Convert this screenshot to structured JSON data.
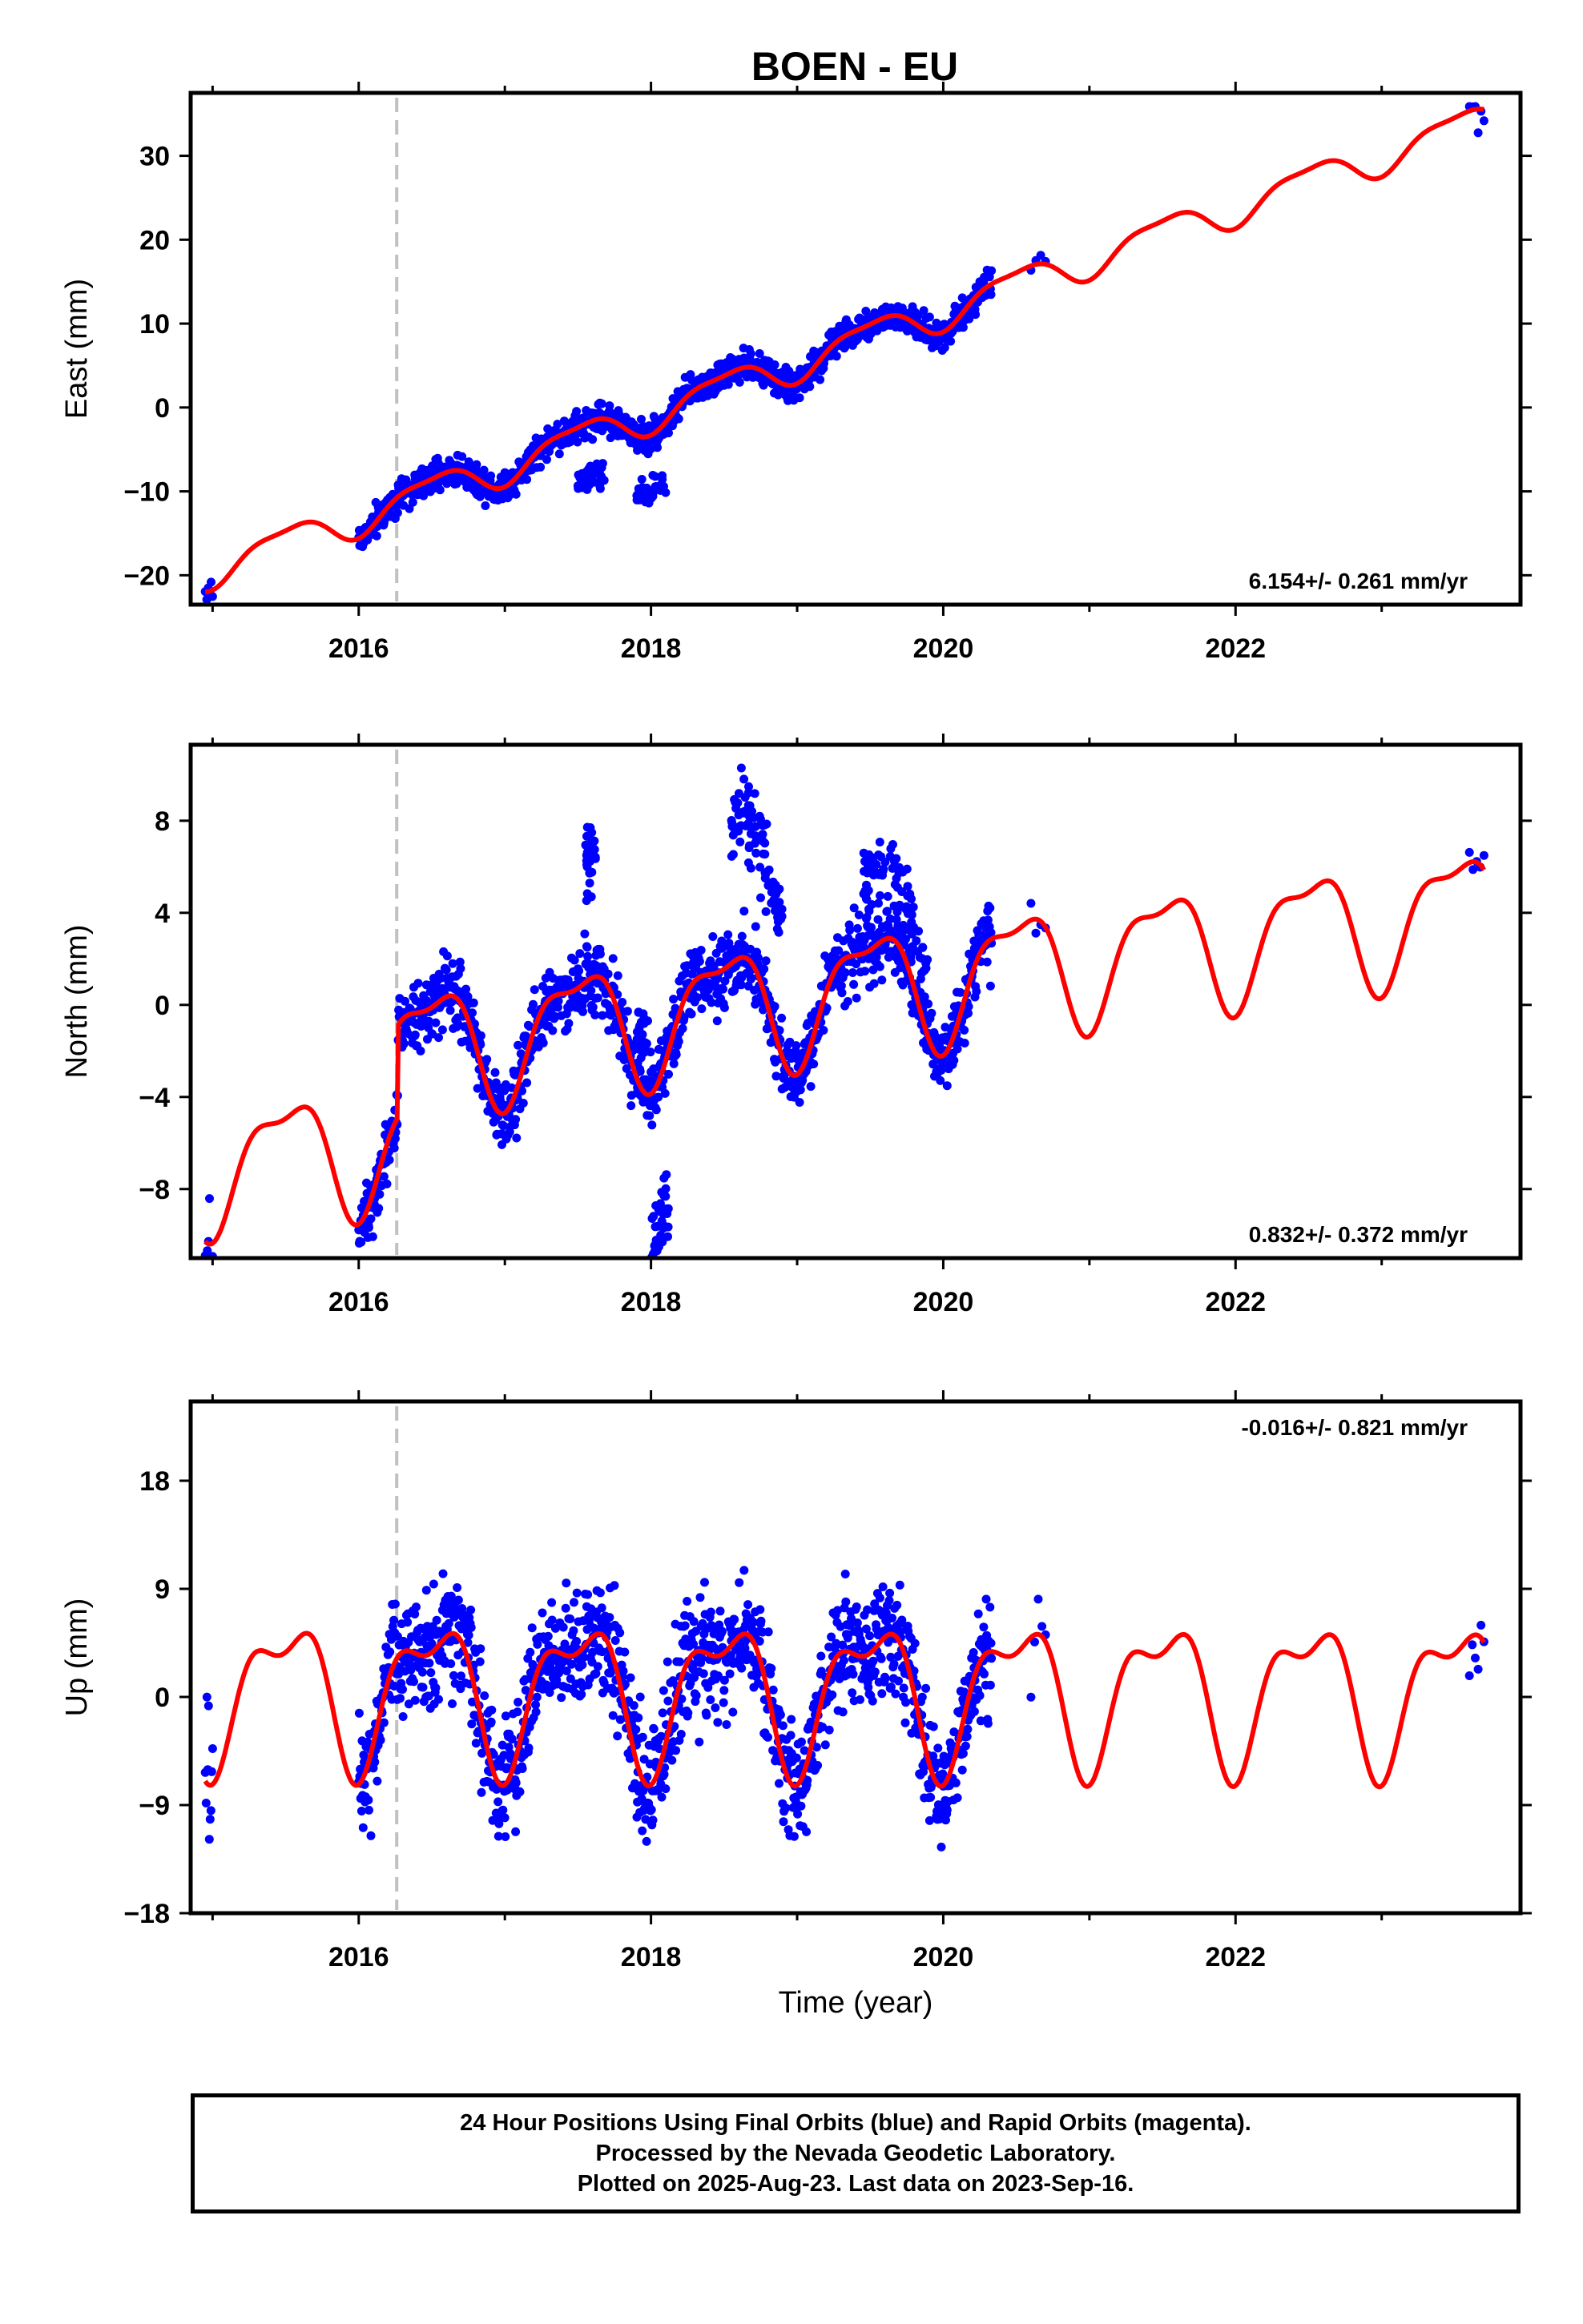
{
  "title": "BOEN - EU",
  "footer": {
    "lines": [
      "24 Hour Positions Using Final Orbits (blue) and Rapid Orbits (magenta).",
      "Processed by the Nevada Geodetic Laboratory.",
      "Plotted on 2025-Aug-23. Last data on 2023-Sep-16."
    ]
  },
  "colors": {
    "observations": "#0000ff",
    "model": "#ff0000",
    "equipment_change": "#c0c0c0",
    "frame": "#000000"
  },
  "chart_data": [
    {
      "type": "scatter",
      "panel": "east",
      "ylabel": "East (mm)",
      "xlabel": "",
      "xlim": [
        2014.85,
        2023.95
      ],
      "ylim": [
        -23.5,
        37.5
      ],
      "xticks": [
        2016,
        2018,
        2020,
        2022
      ],
      "yticks": [
        -20,
        -10,
        0,
        10,
        20,
        30
      ],
      "ytick_labels": [
        "−20",
        "−10",
        "0",
        "10",
        "20",
        "30"
      ],
      "equipment_change_x": 2016.26,
      "rate_text": "6.154+/- 0.261 mm/yr",
      "rate_position": "bottom-right",
      "observations": {
        "segments": [
          {
            "x0": 2014.95,
            "x1": 2015.0,
            "n": 6,
            "noise": 1.6
          },
          {
            "x0": 2016.0,
            "x1": 2020.33,
            "n": 1300,
            "noise": 1.3
          },
          {
            "x0": 2020.6,
            "x1": 2020.7,
            "n": 4,
            "noise": 1.0
          },
          {
            "x0": 2023.6,
            "x1": 2023.7,
            "n": 6,
            "noise": 2.5
          }
        ],
        "clusters": [
          {
            "x0": 2017.5,
            "x1": 2017.68,
            "offset": -6.5,
            "n": 45
          },
          {
            "x0": 2017.9,
            "x1": 2018.1,
            "offset": -7.0,
            "n": 45
          }
        ]
      },
      "model": {
        "rate": 6.154,
        "t0": 2015.0,
        "y0": -19.2,
        "annual_amp": 2.0,
        "semiannual_amp": 0.6,
        "offsets": []
      }
    },
    {
      "type": "scatter",
      "panel": "north",
      "ylabel": "North (mm)",
      "xlabel": "",
      "xlim": [
        2014.85,
        2023.95
      ],
      "ylim": [
        -11.0,
        11.3
      ],
      "xticks": [
        2016,
        2018,
        2020,
        2022
      ],
      "yticks": [
        -8,
        -4,
        0,
        4,
        8
      ],
      "ytick_labels": [
        "−8",
        "−4",
        "0",
        "4",
        "8"
      ],
      "equipment_change_x": 2016.26,
      "rate_text": "0.832+/- 0.372 mm/yr",
      "rate_position": "bottom-right",
      "observations": {
        "segments": [
          {
            "x0": 2014.95,
            "x1": 2015.0,
            "n": 8,
            "noise": 1.2
          },
          {
            "x0": 2016.0,
            "x1": 2020.33,
            "n": 1300,
            "noise": 1.1
          },
          {
            "x0": 2020.6,
            "x1": 2020.7,
            "n": 4,
            "noise": 1.2
          },
          {
            "x0": 2023.6,
            "x1": 2023.7,
            "n": 5,
            "noise": 0.8
          }
        ],
        "clusters": [
          {
            "x0": 2017.55,
            "x1": 2017.62,
            "offset": 5.5,
            "n": 35
          },
          {
            "x0": 2017.9,
            "x1": 2017.98,
            "offset": 2.5,
            "n": 25
          },
          {
            "x0": 2018.0,
            "x1": 2018.12,
            "offset": -6.5,
            "n": 40
          },
          {
            "x0": 2018.55,
            "x1": 2018.9,
            "offset": 6.0,
            "n": 90
          },
          {
            "x0": 2019.45,
            "x1": 2019.9,
            "offset": 2.8,
            "n": 90
          }
        ]
      },
      "model": {
        "rate": 0.832,
        "t0": 2015.0,
        "y0": -7.0,
        "annual_amp": 2.5,
        "semiannual_amp": 0.9,
        "offsets": [
          {
            "x": 2016.27,
            "dy": 4.0
          }
        ]
      }
    },
    {
      "type": "scatter",
      "panel": "up",
      "ylabel": "Up (mm)",
      "xlabel": "Time (year)",
      "xlim": [
        2014.85,
        2023.95
      ],
      "ylim": [
        -18.0,
        24.6
      ],
      "xticks": [
        2016,
        2018,
        2020,
        2022
      ],
      "yticks": [
        -18,
        -9,
        0,
        9,
        18
      ],
      "ytick_labels": [
        "−18",
        "−9",
        "0",
        "9",
        "18"
      ],
      "equipment_change_x": 2016.26,
      "rate_text": "-0.016+/- 0.821 mm/yr",
      "rate_position": "top-right",
      "observations": {
        "segments": [
          {
            "x0": 2014.95,
            "x1": 2015.0,
            "n": 10,
            "noise": 4.5
          },
          {
            "x0": 2016.0,
            "x1": 2020.33,
            "n": 1300,
            "noise": 3.5
          },
          {
            "x0": 2020.6,
            "x1": 2020.7,
            "n": 5,
            "noise": 3.0
          },
          {
            "x0": 2023.6,
            "x1": 2023.7,
            "n": 6,
            "noise": 3.5
          }
        ],
        "clusters": []
      },
      "model": {
        "rate": -0.016,
        "t0": 2015.0,
        "y0": 0.6,
        "annual_amp": 5.5,
        "semiannual_amp": 2.5,
        "offsets": []
      }
    }
  ]
}
